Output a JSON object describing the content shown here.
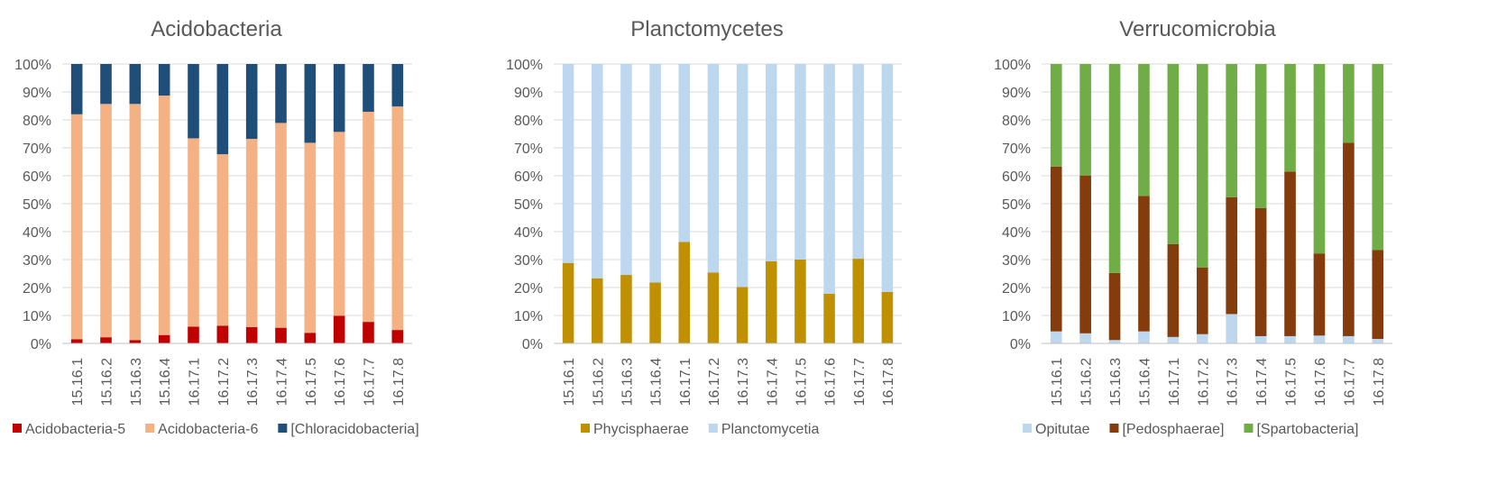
{
  "chart_data": [
    {
      "type": "bar",
      "stacked": true,
      "percent": true,
      "title": "Acidobacteria",
      "xlabel": "",
      "ylabel": "",
      "ylim": [
        0,
        100
      ],
      "yticks": [
        "0%",
        "10%",
        "20%",
        "30%",
        "40%",
        "50%",
        "60%",
        "70%",
        "80%",
        "90%",
        "100%"
      ],
      "grid": true,
      "legend": "bottom",
      "categories": [
        "15.16.1",
        "15.16.2",
        "15.16.3",
        "15.16.4",
        "16.17.1",
        "16.17.2",
        "16.17.3",
        "16.17.4",
        "16.17.5",
        "16.17.6",
        "16.17.7",
        "16.17.8"
      ],
      "series": [
        {
          "name": "Acidobacteria-5",
          "color": "#c00000",
          "values": [
            1.5,
            2.2,
            1.2,
            3.0,
            6.0,
            6.3,
            5.8,
            5.6,
            3.8,
            9.9,
            7.7,
            4.8
          ]
        },
        {
          "name": "Acidobacteria-6",
          "color": "#f4b183",
          "values": [
            80.5,
            83.5,
            84.5,
            85.7,
            67.4,
            61.4,
            67.4,
            73.3,
            68.0,
            65.8,
            75.2,
            80.0
          ]
        },
        {
          "name": "[Chloracidobacteria]",
          "color": "#1f4e79",
          "values": [
            18.0,
            14.3,
            14.3,
            11.3,
            26.6,
            32.3,
            26.8,
            21.1,
            28.2,
            24.3,
            17.1,
            15.2
          ]
        }
      ]
    },
    {
      "type": "bar",
      "stacked": true,
      "percent": true,
      "title": "Planctomycetes",
      "xlabel": "",
      "ylabel": "",
      "ylim": [
        0,
        100
      ],
      "yticks": [
        "0%",
        "10%",
        "20%",
        "30%",
        "40%",
        "50%",
        "60%",
        "70%",
        "80%",
        "90%",
        "100%"
      ],
      "grid": true,
      "legend": "bottom",
      "categories": [
        "15.16.1",
        "15.16.2",
        "15.16.3",
        "15.16.4",
        "16.17.1",
        "16.17.2",
        "16.17.3",
        "16.17.4",
        "16.17.5",
        "16.17.6",
        "16.17.7",
        "16.17.8"
      ],
      "series": [
        {
          "name": "Phycisphaerae",
          "color": "#bf9000",
          "values": [
            28.8,
            23.3,
            24.5,
            21.8,
            36.3,
            25.4,
            20.2,
            29.4,
            30.0,
            17.8,
            30.3,
            18.4
          ]
        },
        {
          "name": "Planctomycetia",
          "color": "#bdd7ee",
          "values": [
            71.2,
            76.7,
            75.5,
            78.2,
            63.7,
            74.6,
            79.8,
            70.6,
            70.0,
            82.2,
            69.7,
            81.6
          ]
        }
      ]
    },
    {
      "type": "bar",
      "stacked": true,
      "percent": true,
      "title": "Verrucomicrobia",
      "xlabel": "",
      "ylabel": "",
      "ylim": [
        0,
        100
      ],
      "yticks": [
        "0%",
        "10%",
        "20%",
        "30%",
        "40%",
        "50%",
        "60%",
        "70%",
        "80%",
        "90%",
        "100%"
      ],
      "grid": true,
      "legend": "bottom",
      "categories": [
        "15.16.1",
        "15.16.2",
        "15.16.3",
        "15.16.4",
        "16.17.1",
        "16.17.2",
        "16.17.3",
        "16.17.4",
        "16.17.5",
        "16.17.6",
        "16.17.7",
        "16.17.8"
      ],
      "series": [
        {
          "name": "Opitutae",
          "color": "#bdd7ee",
          "values": [
            4.3,
            3.6,
            1.2,
            4.3,
            2.3,
            3.3,
            10.5,
            2.6,
            2.6,
            2.8,
            2.6,
            1.6
          ]
        },
        {
          "name": "[Pedosphaerae]",
          "color": "#843c0c",
          "values": [
            59.0,
            56.5,
            24.0,
            48.5,
            33.2,
            23.8,
            41.8,
            45.8,
            58.9,
            29.4,
            69.2,
            31.8
          ]
        },
        {
          "name": "[Spartobacteria]",
          "color": "#70ad47",
          "values": [
            36.7,
            39.9,
            74.8,
            47.2,
            64.5,
            72.9,
            47.7,
            51.6,
            38.5,
            67.8,
            28.2,
            66.6
          ]
        }
      ]
    }
  ]
}
